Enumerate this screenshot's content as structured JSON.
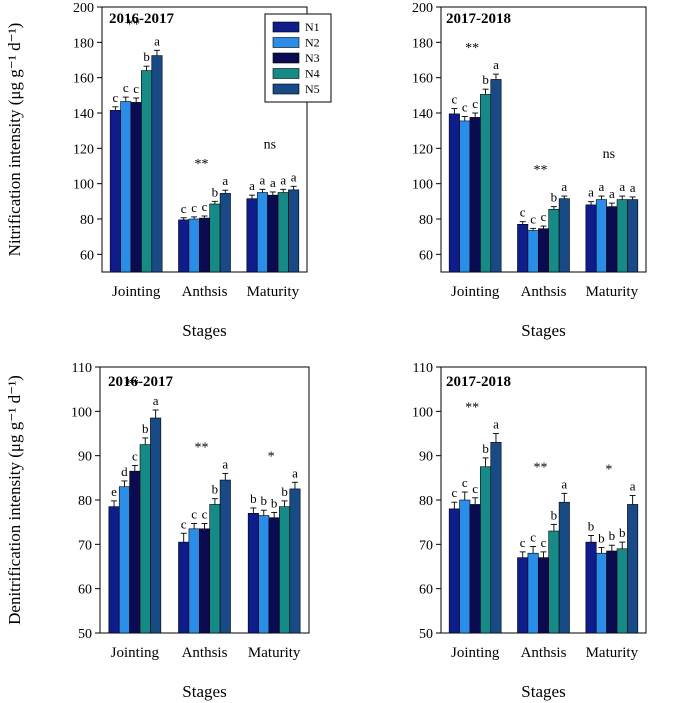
{
  "chart_data": [
    {
      "type": "bar",
      "title": "2016-2017",
      "xlabel": "Stages",
      "ylabel": "Nitrification intensity (μg g⁻¹ d⁻¹)",
      "ylim": [
        50,
        200
      ],
      "yticks": [
        60,
        80,
        100,
        120,
        140,
        160,
        180,
        200
      ],
      "categories": [
        "Jointing",
        "Anthsis",
        "Maturity"
      ],
      "series": [
        {
          "name": "N1",
          "values": [
            141.5,
            79.5,
            91.5
          ],
          "errors": [
            2.0,
            1.2,
            2.0
          ],
          "letters": [
            "c",
            "c",
            "a"
          ]
        },
        {
          "name": "N2",
          "values": [
            146.5,
            80.0,
            95.0
          ],
          "errors": [
            2.5,
            1.2,
            1.8
          ],
          "letters": [
            "c",
            "c",
            "a"
          ]
        },
        {
          "name": "N3",
          "values": [
            146.0,
            80.5,
            93.5
          ],
          "errors": [
            2.5,
            1.2,
            1.8
          ],
          "letters": [
            "c",
            "c",
            "a"
          ]
        },
        {
          "name": "N4",
          "values": [
            164.0,
            88.5,
            95.0
          ],
          "errors": [
            2.5,
            1.5,
            1.8
          ],
          "letters": [
            "b",
            "b",
            "a"
          ]
        },
        {
          "name": "N5",
          "values": [
            172.5,
            94.5,
            96.5
          ],
          "errors": [
            3.0,
            1.8,
            2.0
          ],
          "letters": [
            "a",
            "a",
            "a"
          ]
        }
      ],
      "significance": [
        "**",
        "**",
        "ns"
      ]
    },
    {
      "type": "bar",
      "title": "2017-2018",
      "xlabel": "Stages",
      "ylabel": "",
      "ylim": [
        50,
        200
      ],
      "yticks": [
        60,
        80,
        100,
        120,
        140,
        160,
        180,
        200
      ],
      "categories": [
        "Jointing",
        "Anthsis",
        "Maturity"
      ],
      "series": [
        {
          "name": "N1",
          "values": [
            139.5,
            77.0,
            88.0
          ],
          "errors": [
            3.0,
            1.5,
            1.8
          ],
          "letters": [
            "c",
            "c",
            "a"
          ]
        },
        {
          "name": "N2",
          "values": [
            135.5,
            73.5,
            91.0
          ],
          "errors": [
            2.5,
            1.2,
            2.0
          ],
          "letters": [
            "c",
            "c",
            "a"
          ]
        },
        {
          "name": "N3",
          "values": [
            137.5,
            74.5,
            87.0
          ],
          "errors": [
            2.5,
            1.5,
            2.0
          ],
          "letters": [
            "c",
            "c",
            "a"
          ]
        },
        {
          "name": "N4",
          "values": [
            150.5,
            85.5,
            91.0
          ],
          "errors": [
            3.0,
            1.5,
            2.0
          ],
          "letters": [
            "b",
            "b",
            "a"
          ]
        },
        {
          "name": "N5",
          "values": [
            159.0,
            91.5,
            91.0
          ],
          "errors": [
            3.0,
            1.5,
            1.5
          ],
          "letters": [
            "a",
            "a",
            "a"
          ]
        }
      ],
      "significance": [
        "**",
        "**",
        "ns"
      ]
    },
    {
      "type": "bar",
      "title": "2016-2017",
      "xlabel": "Stages",
      "ylabel": "Denitrification intensity (μg g⁻¹ d⁻¹)",
      "ylim": [
        50,
        110
      ],
      "yticks": [
        50,
        60,
        70,
        80,
        90,
        100,
        110
      ],
      "categories": [
        "Jointing",
        "Anthsis",
        "Maturity"
      ],
      "series": [
        {
          "name": "N1",
          "values": [
            78.5,
            70.5,
            77.0
          ],
          "errors": [
            1.3,
            2.0,
            1.2
          ],
          "letters": [
            "e",
            "c",
            "b"
          ]
        },
        {
          "name": "N2",
          "values": [
            83.0,
            73.5,
            76.5
          ],
          "errors": [
            1.3,
            1.2,
            1.2
          ],
          "letters": [
            "d",
            "c",
            "b"
          ]
        },
        {
          "name": "N3",
          "values": [
            86.5,
            73.5,
            76.0
          ],
          "errors": [
            1.3,
            1.2,
            1.2
          ],
          "letters": [
            "c",
            "c",
            "b"
          ]
        },
        {
          "name": "N4",
          "values": [
            92.5,
            79.0,
            78.5
          ],
          "errors": [
            1.5,
            1.3,
            1.3
          ],
          "letters": [
            "b",
            "b",
            "b"
          ]
        },
        {
          "name": "N5",
          "values": [
            98.5,
            84.5,
            82.5
          ],
          "errors": [
            1.8,
            1.5,
            1.5
          ],
          "letters": [
            "a",
            "a",
            "a"
          ]
        }
      ],
      "significance": [
        "**",
        "**",
        "*"
      ]
    },
    {
      "type": "bar",
      "title": "2017-2018",
      "xlabel": "Stages",
      "ylabel": "",
      "ylim": [
        50,
        110
      ],
      "yticks": [
        50,
        60,
        70,
        80,
        90,
        100,
        110
      ],
      "categories": [
        "Jointing",
        "Anthsis",
        "Maturity"
      ],
      "series": [
        {
          "name": "N1",
          "values": [
            78.0,
            67.0,
            70.5
          ],
          "errors": [
            1.5,
            1.3,
            1.5
          ],
          "letters": [
            "c",
            "c",
            "b"
          ]
        },
        {
          "name": "N2",
          "values": [
            80.0,
            68.0,
            68.0
          ],
          "errors": [
            1.8,
            1.5,
            1.3
          ],
          "letters": [
            "c",
            "c",
            "b"
          ]
        },
        {
          "name": "N3",
          "values": [
            79.0,
            67.0,
            68.5
          ],
          "errors": [
            1.5,
            1.3,
            1.3
          ],
          "letters": [
            "c",
            "c",
            "b"
          ]
        },
        {
          "name": "N4",
          "values": [
            87.5,
            73.0,
            69.0
          ],
          "errors": [
            2.0,
            1.5,
            1.5
          ],
          "letters": [
            "b",
            "b",
            "b"
          ]
        },
        {
          "name": "N5",
          "values": [
            93.0,
            79.5,
            79.0
          ],
          "errors": [
            2.0,
            2.0,
            2.0
          ],
          "letters": [
            "a",
            "a",
            "a"
          ]
        }
      ],
      "significance": [
        "**",
        "**",
        "*"
      ]
    }
  ],
  "legend": {
    "placement": "inside top-right of first panel",
    "entries": [
      "N1",
      "N2",
      "N3",
      "N4",
      "N5"
    ]
  },
  "colors": {
    "N1": "#0e1d8a",
    "N2": "#2a8ee8",
    "N3": "#0b0b52",
    "N4": "#168a86",
    "N5": "#184a86"
  }
}
